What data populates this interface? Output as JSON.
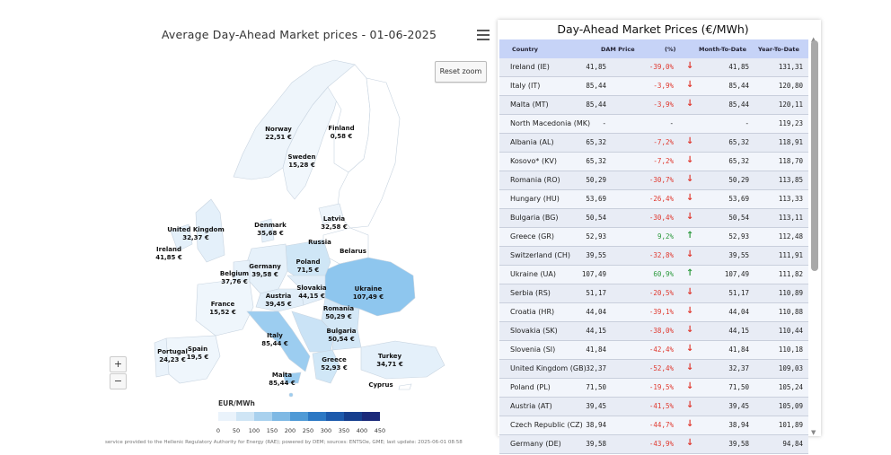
{
  "map": {
    "title": "Average Day-Ahead Market prices - 01-06-2025",
    "reset_zoom_label": "Reset zoom",
    "zoom_in_label": "+",
    "zoom_out_label": "−",
    "legend_title": "EUR/MWh",
    "legend_ticks": [
      "0",
      "50",
      "100",
      "150",
      "200",
      "250",
      "300",
      "350",
      "400",
      "450"
    ],
    "legend_colors": [
      "#eaf3fb",
      "#cfe5f5",
      "#a9d1ee",
      "#7fb9e4",
      "#4f9ad6",
      "#2c78c4",
      "#1d5aac",
      "#163f8e",
      "#1b2a7a"
    ],
    "footnote": "service provided to the Hellenic Regulatory Authority for Energy (RAE); powered by DEM; sources: ENTSOe, GME; last update: 2025-06-01 08:58",
    "labels": [
      {
        "name": "Norway",
        "price": "22,51 €"
      },
      {
        "name": "Finland",
        "price": "0,58 €"
      },
      {
        "name": "Sweden",
        "price": "15,28 €"
      },
      {
        "name": "Latvia",
        "price": "32,58 €"
      },
      {
        "name": "Denmark",
        "price": "35,68 €"
      },
      {
        "name": "United Kingdom",
        "price": "32,37 €"
      },
      {
        "name": "Ireland",
        "price": "41,85 €"
      },
      {
        "name": "Russia",
        "price": ""
      },
      {
        "name": "Belarus",
        "price": ""
      },
      {
        "name": "Poland",
        "price": "71,5 €"
      },
      {
        "name": "Germany",
        "price": "39,58 €"
      },
      {
        "name": "Belgium",
        "price": "37,76 €"
      },
      {
        "name": "Ukraine",
        "price": "107,49 €"
      },
      {
        "name": "Slovakia",
        "price": "44,15 €"
      },
      {
        "name": "Austria",
        "price": "39,45 €"
      },
      {
        "name": "France",
        "price": "15,52 €"
      },
      {
        "name": "Romania",
        "price": "50,29 €"
      },
      {
        "name": "Italy",
        "price": "85,44 €"
      },
      {
        "name": "Bulgaria",
        "price": "50,54 €"
      },
      {
        "name": "Portugal",
        "price": "24,23 €"
      },
      {
        "name": "Spain",
        "price": "19,5 €"
      },
      {
        "name": "Turkey",
        "price": "34,71 €"
      },
      {
        "name": "Greece",
        "price": "52,93 €"
      },
      {
        "name": "Malta",
        "price": "85,44 €"
      },
      {
        "name": "Cyprus",
        "price": ""
      }
    ]
  },
  "table": {
    "title": "Day-Ahead Market Prices (€/MWh)",
    "headers": {
      "country": "Country",
      "dam": "DAM Price",
      "pct": "(%)",
      "mtd": "Month-To-Date",
      "ytd": "Year-To-Date"
    },
    "rows": [
      {
        "country": "Ireland (IE)",
        "dam": "41,85",
        "pct": "-39,0%",
        "dir": "down",
        "mtd": "41,85",
        "ytd": "131,31"
      },
      {
        "country": "Italy (IT)",
        "dam": "85,44",
        "pct": "-3,9%",
        "dir": "down",
        "mtd": "85,44",
        "ytd": "120,80"
      },
      {
        "country": "Malta (MT)",
        "dam": "85,44",
        "pct": "-3,9%",
        "dir": "down",
        "mtd": "85,44",
        "ytd": "120,11"
      },
      {
        "country": "North Macedonia (MK)",
        "dam": "-",
        "pct": "-",
        "dir": "none",
        "mtd": "-",
        "ytd": "119,23"
      },
      {
        "country": "Albania (AL)",
        "dam": "65,32",
        "pct": "-7,2%",
        "dir": "down",
        "mtd": "65,32",
        "ytd": "118,91"
      },
      {
        "country": "Kosovo* (KV)",
        "dam": "65,32",
        "pct": "-7,2%",
        "dir": "down",
        "mtd": "65,32",
        "ytd": "118,70"
      },
      {
        "country": "Romania (RO)",
        "dam": "50,29",
        "pct": "-30,7%",
        "dir": "down",
        "mtd": "50,29",
        "ytd": "113,85"
      },
      {
        "country": "Hungary (HU)",
        "dam": "53,69",
        "pct": "-26,4%",
        "dir": "down",
        "mtd": "53,69",
        "ytd": "113,33"
      },
      {
        "country": "Bulgaria (BG)",
        "dam": "50,54",
        "pct": "-30,4%",
        "dir": "down",
        "mtd": "50,54",
        "ytd": "113,11"
      },
      {
        "country": "Greece (GR)",
        "dam": "52,93",
        "pct": "9,2%",
        "dir": "up",
        "mtd": "52,93",
        "ytd": "112,48"
      },
      {
        "country": "Switzerland (CH)",
        "dam": "39,55",
        "pct": "-32,8%",
        "dir": "down",
        "mtd": "39,55",
        "ytd": "111,91"
      },
      {
        "country": "Ukraine (UA)",
        "dam": "107,49",
        "pct": "60,9%",
        "dir": "up",
        "mtd": "107,49",
        "ytd": "111,82"
      },
      {
        "country": "Serbia (RS)",
        "dam": "51,17",
        "pct": "-20,5%",
        "dir": "down",
        "mtd": "51,17",
        "ytd": "110,89"
      },
      {
        "country": "Croatia (HR)",
        "dam": "44,04",
        "pct": "-39,1%",
        "dir": "down",
        "mtd": "44,04",
        "ytd": "110,88"
      },
      {
        "country": "Slovakia (SK)",
        "dam": "44,15",
        "pct": "-38,0%",
        "dir": "down",
        "mtd": "44,15",
        "ytd": "110,44"
      },
      {
        "country": "Slovenia (SI)",
        "dam": "41,84",
        "pct": "-42,4%",
        "dir": "down",
        "mtd": "41,84",
        "ytd": "110,18"
      },
      {
        "country": "United Kingdom (GB)",
        "dam": "32,37",
        "pct": "-52,4%",
        "dir": "down",
        "mtd": "32,37",
        "ytd": "109,03"
      },
      {
        "country": "Poland (PL)",
        "dam": "71,50",
        "pct": "-19,5%",
        "dir": "down",
        "mtd": "71,50",
        "ytd": "105,24"
      },
      {
        "country": "Austria (AT)",
        "dam": "39,45",
        "pct": "-41,5%",
        "dir": "down",
        "mtd": "39,45",
        "ytd": "105,09"
      },
      {
        "country": "Czech Republic (CZ)",
        "dam": "38,94",
        "pct": "-44,7%",
        "dir": "down",
        "mtd": "38,94",
        "ytd": "101,89"
      },
      {
        "country": "Germany (DE)",
        "dam": "39,58",
        "pct": "-43,9%",
        "dir": "down",
        "mtd": "39,58",
        "ytd": "94,84"
      }
    ]
  }
}
